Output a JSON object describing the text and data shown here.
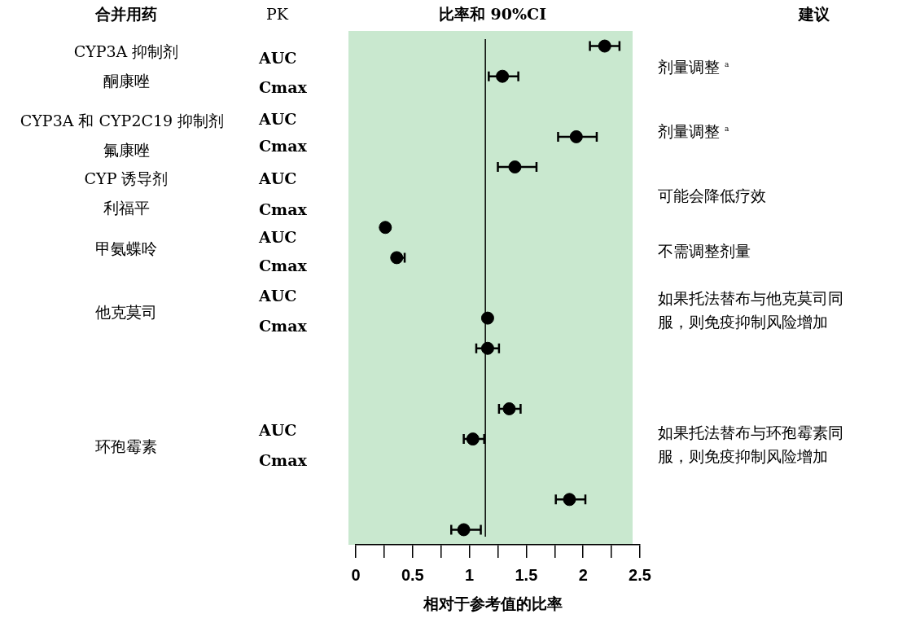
{
  "chart_data": {
    "type": "scatter",
    "orientation": "horizontal",
    "title": "比率和 90%CI",
    "xlabel": "相对于参考值的比率",
    "categories": [
      null,
      null,
      null,
      null,
      null,
      null,
      null,
      null,
      null,
      null,
      null,
      null,
      null,
      null,
      null,
      null,
      null
    ],
    "values": [
      2.19,
      1.29,
      null,
      1.94,
      1.4,
      null,
      0.26,
      0.36,
      null,
      1.16,
      1.16,
      null,
      1.35,
      1.03,
      null,
      1.88,
      0.95
    ],
    "errors": [
      [
        2.06,
        2.32
      ],
      [
        1.17,
        1.43
      ],
      null,
      [
        1.78,
        2.12
      ],
      [
        1.25,
        1.59
      ],
      null,
      null,
      [
        0.36,
        0.43
      ],
      null,
      null,
      [
        1.06,
        1.26
      ],
      null,
      [
        1.26,
        1.45
      ],
      [
        0.95,
        1.13
      ],
      null,
      [
        1.76,
        2.02
      ],
      [
        0.84,
        1.1
      ]
    ],
    "color": "#000000",
    "marker": "circle",
    "xlim": [
      0,
      2.5
    ],
    "xticks": [
      0,
      {
        "value": 0.25,
        "label": null
      },
      0.5,
      {
        "value": 0.75,
        "label": null
      },
      1,
      {
        "value": 1.25,
        "label": null
      },
      1.5,
      {
        "value": 1.75,
        "label": null
      },
      2,
      {
        "value": 2.25,
        "label": null
      },
      2.5
    ],
    "ref_lines": [
      {
        "axis": "x",
        "value": 1.14,
        "color": "#000000"
      }
    ],
    "tick_labels": "x",
    "grid": false,
    "legend": false,
    "annotations": [
      "合并用药",
      "PK",
      "建议",
      "CYP3A 抑制剂",
      "酮康唑",
      "CYP3A 和 CYP2C19 抑制剂",
      "氟康唑",
      "CYP 诱导剂",
      "利福平",
      "甲氨蝶呤",
      "他克莫司",
      "环孢霉素",
      "AUC",
      "Cmax",
      "AUC",
      "Cmax",
      "AUC",
      "Cmax",
      "AUC",
      "Cmax",
      "AUC",
      "Cmax",
      "AUC",
      "Cmax",
      "剂量调整 $^{a}$",
      "剂量调整 $^{a}$",
      "可能会降低疗效",
      "不需调整剂量",
      "如果托法替布与他克莫司同服，则免疫抑制风险增加",
      "如果托法替布与环孢霉素同服，则免疫抑制风险增加"
    ]
  }
}
